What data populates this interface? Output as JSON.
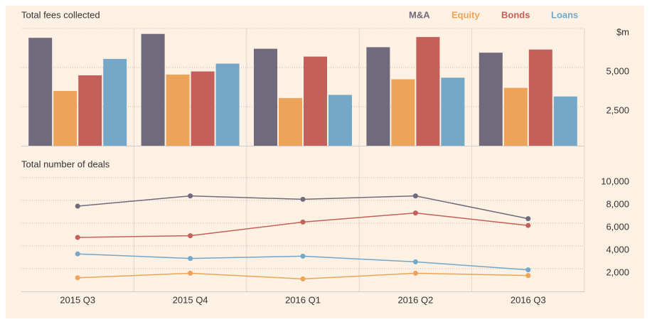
{
  "chart_data": [
    {
      "type": "bar",
      "title": "Total fees collected",
      "series": [
        {
          "name": "M&A",
          "color": "#716a7c",
          "values": [
            6900,
            7150,
            6200,
            6300,
            5950
          ]
        },
        {
          "name": "Equity",
          "color": "#eda35a",
          "values": [
            3500,
            4550,
            3050,
            4250,
            3700
          ]
        },
        {
          "name": "Bonds",
          "color": "#c4605a",
          "values": [
            4500,
            4750,
            5700,
            6950,
            6150
          ]
        },
        {
          "name": "Loans",
          "color": "#74a7c8",
          "values": [
            5550,
            5250,
            3250,
            4350,
            3150
          ]
        }
      ],
      "ylim": [
        0,
        7500
      ],
      "yticks": [
        {
          "value": 2500,
          "label": "2,500"
        },
        {
          "value": 5000,
          "label": "5,000"
        },
        {
          "value": 7500,
          "label": "$m"
        }
      ],
      "grid": true,
      "legend": "top-right"
    },
    {
      "type": "line",
      "title": "Total number of deals",
      "categories": [
        "2015 Q3",
        "2015 Q4",
        "2016 Q1",
        "2016 Q2",
        "2016 Q3"
      ],
      "series": [
        {
          "color": "#716a7c",
          "values": [
            7500,
            8400,
            8100,
            8400,
            6400
          ]
        },
        {
          "color": "#eda35a",
          "values": [
            1200,
            1600,
            1100,
            1600,
            1400
          ]
        },
        {
          "color": "#c4605a",
          "values": [
            4750,
            4900,
            6100,
            6900,
            5800
          ]
        },
        {
          "color": "#74a7c8",
          "values": [
            3300,
            2900,
            3100,
            2600,
            1900
          ]
        }
      ],
      "ylim": [
        0,
        10000
      ],
      "yticks": [
        {
          "value": 2000,
          "label": "2,000"
        },
        {
          "value": 4000,
          "label": "4,000"
        },
        {
          "value": 6000,
          "label": "6,000"
        },
        {
          "value": 8000,
          "label": "8,000"
        },
        {
          "value": 10000,
          "label": "10,000"
        }
      ],
      "grid": true
    }
  ]
}
